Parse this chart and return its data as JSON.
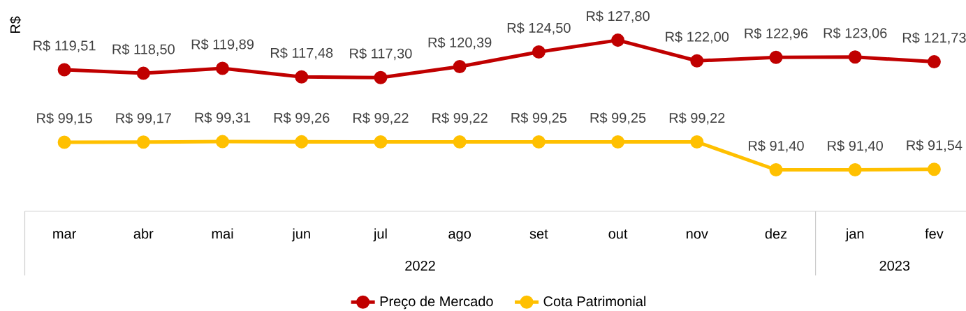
{
  "chart_data": {
    "type": "line",
    "ylabel": "R$",
    "categories": [
      "mar",
      "abr",
      "mai",
      "jun",
      "jul",
      "ago",
      "set",
      "out",
      "nov",
      "dez",
      "jan",
      "fev"
    ],
    "series": [
      {
        "name": "Preço de Mercado",
        "color": "#c00000",
        "values": [
          119.51,
          118.5,
          119.89,
          117.48,
          117.3,
          120.39,
          124.5,
          127.8,
          122.0,
          122.96,
          123.06,
          121.73
        ],
        "value_labels": [
          "R$ 119,51",
          "R$ 118,50",
          "R$ 119,89",
          "R$ 117,48",
          "R$ 117,30",
          "R$ 120,39",
          "R$ 124,50",
          "R$ 127,80",
          "R$ 122,00",
          "R$ 122,96",
          "R$ 123,06",
          "R$ 121,73"
        ]
      },
      {
        "name": "Cota Patrimonial",
        "color": "#ffc000",
        "values": [
          99.15,
          99.17,
          99.31,
          99.26,
          99.22,
          99.22,
          99.25,
          99.25,
          99.22,
          91.4,
          91.4,
          91.54
        ],
        "value_labels": [
          "R$ 99,15",
          "R$ 99,17",
          "R$ 99,31",
          "R$ 99,26",
          "R$ 99,22",
          "R$ 99,22",
          "R$ 99,25",
          "R$ 99,25",
          "R$ 99,22",
          "R$ 91,40",
          "R$ 91,40",
          "R$ 91,54"
        ]
      }
    ],
    "marker": "circle",
    "line_style": "solid",
    "legend": "bottom",
    "annotations": [
      "2022",
      "2023"
    ]
  }
}
